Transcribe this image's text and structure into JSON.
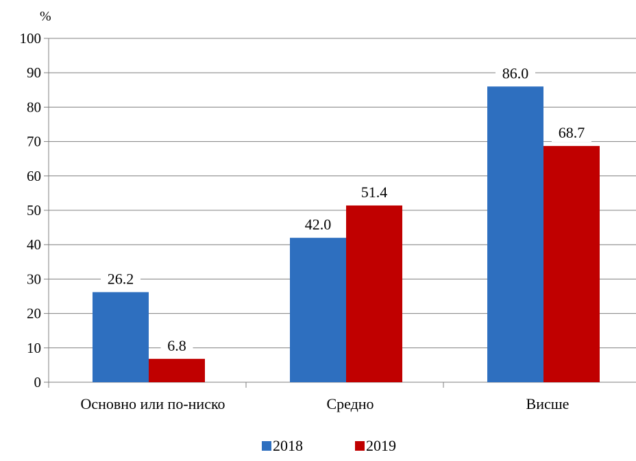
{
  "chart_data": {
    "type": "bar",
    "ylabel": "%",
    "ylim": [
      0,
      100
    ],
    "yticks": [
      "0",
      "10",
      "20",
      "30",
      "40",
      "50",
      "60",
      "70",
      "80",
      "90",
      "100"
    ],
    "grid": true,
    "legend_position": "bottom",
    "categories": [
      "Основно или по-ниско",
      "Средно",
      "Висше"
    ],
    "series": [
      {
        "name": "2018",
        "color": "#2e6fbf",
        "values": [
          26.2,
          42.0,
          86.0
        ],
        "labels": [
          "26.2",
          "42.0",
          "86.0"
        ]
      },
      {
        "name": "2019",
        "color": "#c00000",
        "values": [
          6.8,
          51.4,
          68.7
        ],
        "labels": [
          "6.8",
          "51.4",
          "68.7"
        ]
      }
    ]
  }
}
